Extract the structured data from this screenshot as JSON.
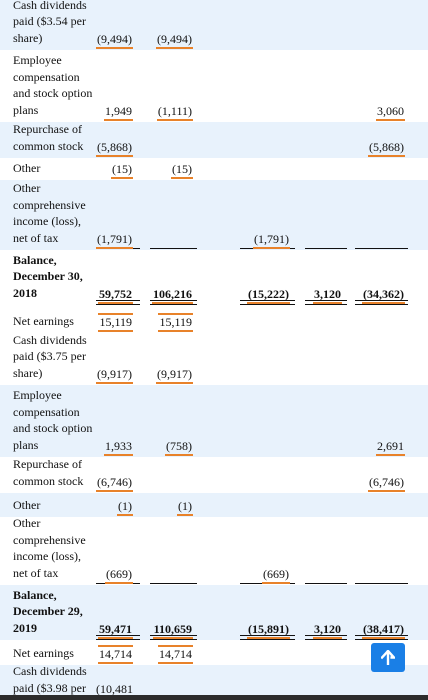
{
  "rows": [
    {
      "label": "Cash dividends paid ($3.54 per share)",
      "v1": "(9,494)",
      "v2": "(9,494)",
      "v3": "",
      "v4": "",
      "v5": ""
    },
    {
      "label": "Employee compensation and stock option plans",
      "v1": "1,949",
      "v2": "(1,111)",
      "v3": "",
      "v4": "",
      "v5": "3,060"
    },
    {
      "label": "Repurchase of common stock",
      "v1": "(5,868)",
      "v2": "",
      "v3": "",
      "v4": "",
      "v5": "(5,868)"
    },
    {
      "label": "Other",
      "v1": "(15)",
      "v2": "(15)",
      "v3": "",
      "v4": "",
      "v5": ""
    },
    {
      "label": "Other comprehensive income (loss), net of tax",
      "v1": "(1,791)",
      "v2": "",
      "v3": "(1,791)",
      "v4": "",
      "v5": ""
    },
    {
      "label": "Balance, December 30, 2018",
      "v1": "59,752",
      "v2": "106,216",
      "v3": "(15,222)",
      "v4": "3,120",
      "v5": "(34,362)"
    },
    {
      "label": "Net earnings",
      "v1": "15,119",
      "v2": "15,119",
      "v3": "",
      "v4": "",
      "v5": ""
    },
    {
      "label": "Cash dividends paid ($3.75 per share)",
      "v1": "(9,917)",
      "v2": "(9,917)",
      "v3": "",
      "v4": "",
      "v5": ""
    },
    {
      "label": "Employee compensation and stock option plans",
      "v1": "1,933",
      "v2": "(758)",
      "v3": "",
      "v4": "",
      "v5": "2,691"
    },
    {
      "label": "Repurchase of common stock",
      "v1": "(6,746)",
      "v2": "",
      "v3": "",
      "v4": "",
      "v5": "(6,746)"
    },
    {
      "label": "Other",
      "v1": "(1)",
      "v2": "(1)",
      "v3": "",
      "v4": "",
      "v5": ""
    },
    {
      "label": "Other comprehensive income (loss), net of tax",
      "v1": "(669)",
      "v2": "",
      "v3": "(669)",
      "v4": "",
      "v5": ""
    },
    {
      "label": "Balance, December 29, 2019",
      "v1": "59,471",
      "v2": "110,659",
      "v3": "(15,891)",
      "v4": "3,120",
      "v5": "(38,417)"
    },
    {
      "label": "Net earnings",
      "v1": "14,714",
      "v2": "14,714",
      "v3": "",
      "v4": "",
      "v5": ""
    },
    {
      "label": "Cash dividends paid ($3.98 per",
      "v1": "(10,481",
      "v2": "",
      "v3": "",
      "v4": "",
      "v5": ""
    }
  ],
  "controls": {
    "scroll_top_icon": "arrow-up-icon"
  },
  "colors": {
    "row_highlight": "#e8f2fc",
    "annotation": "#e8822a",
    "button": "#1a7fe6"
  }
}
